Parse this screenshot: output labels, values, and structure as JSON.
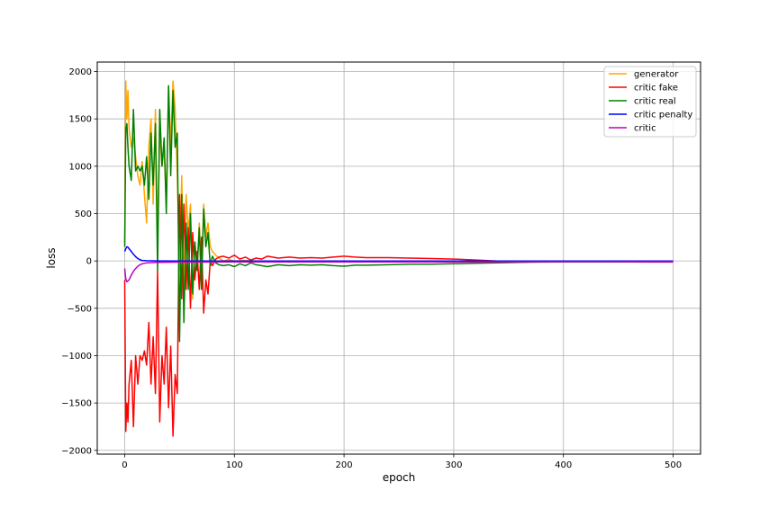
{
  "chart_data": {
    "type": "line",
    "title": "",
    "xlabel": "epoch",
    "ylabel": "loss",
    "xlim": [
      -25,
      525
    ],
    "ylim": [
      -2040,
      2100
    ],
    "xticks": [
      0,
      100,
      200,
      300,
      400,
      500
    ],
    "yticks": [
      -2000,
      -1500,
      -1000,
      -500,
      0,
      500,
      1000,
      1500,
      2000
    ],
    "ytick_labels": [
      "−2000",
      "−1500",
      "−1000",
      "−500",
      "0",
      "500",
      "1000",
      "1500",
      "2000"
    ],
    "grid": true,
    "legend_position": "top-right",
    "series": [
      {
        "name": "generator",
        "color": "#ffa500",
        "x": [
          0,
          1,
          2,
          3,
          4,
          6,
          8,
          10,
          12,
          14,
          16,
          18,
          20,
          22,
          24,
          26,
          28,
          30,
          32,
          34,
          36,
          38,
          40,
          42,
          44,
          46,
          48,
          50,
          52,
          54,
          56,
          58,
          60,
          62,
          64,
          66,
          68,
          70,
          72,
          74,
          76,
          78,
          80,
          83,
          86,
          90,
          95,
          100,
          110,
          120,
          130,
          140,
          150,
          160,
          170,
          180,
          190,
          200,
          220,
          240,
          260,
          280,
          300,
          320,
          340,
          360,
          380,
          400,
          420,
          440,
          460,
          480,
          500
        ],
        "y": [
          200,
          1900,
          1500,
          1800,
          1400,
          1200,
          1300,
          1100,
          900,
          800,
          1050,
          700,
          400,
          1200,
          1500,
          600,
          1600,
          200,
          1400,
          1000,
          1200,
          600,
          1850,
          1200,
          1900,
          1600,
          900,
          -100,
          900,
          -300,
          700,
          300,
          600,
          -400,
          200,
          -100,
          400,
          -250,
          600,
          250,
          400,
          150,
          100,
          60,
          30,
          0,
          15,
          0,
          5,
          0,
          0,
          0,
          0,
          0,
          0,
          0,
          0,
          0,
          0,
          0,
          0,
          0,
          0,
          0,
          0,
          0,
          0,
          0,
          0,
          0,
          0,
          0,
          0
        ]
      },
      {
        "name": "critic fake",
        "color": "#ff0000",
        "x": [
          0,
          1,
          2,
          3,
          4,
          6,
          8,
          10,
          12,
          14,
          16,
          18,
          20,
          22,
          24,
          26,
          28,
          30,
          32,
          34,
          36,
          38,
          40,
          42,
          44,
          46,
          48,
          50,
          52,
          54,
          56,
          58,
          60,
          62,
          64,
          66,
          68,
          70,
          72,
          74,
          76,
          78,
          80,
          83,
          86,
          90,
          95,
          100,
          105,
          110,
          115,
          120,
          125,
          130,
          140,
          150,
          160,
          170,
          180,
          190,
          200,
          210,
          220,
          240,
          260,
          280,
          300,
          320,
          340,
          360,
          380,
          400,
          420,
          440,
          460,
          480,
          500
        ],
        "y": [
          -200,
          -1800,
          -1500,
          -1700,
          -1300,
          -1050,
          -1750,
          -1000,
          -1300,
          -1000,
          -1050,
          -950,
          -1100,
          -650,
          -1300,
          -800,
          -1400,
          -100,
          -1700,
          -1000,
          -1300,
          -700,
          -1550,
          -900,
          -1850,
          -1200,
          -1400,
          700,
          -400,
          600,
          -300,
          350,
          -500,
          300,
          -200,
          100,
          -300,
          250,
          -550,
          -200,
          -350,
          0,
          -50,
          20,
          40,
          50,
          30,
          60,
          20,
          40,
          10,
          30,
          20,
          50,
          30,
          40,
          30,
          35,
          30,
          40,
          50,
          40,
          35,
          35,
          30,
          25,
          20,
          10,
          0,
          -5,
          -10,
          -5,
          -8,
          -10,
          -10,
          -12,
          -12
        ]
      },
      {
        "name": "critic real",
        "color": "#008000",
        "x": [
          0,
          1,
          2,
          3,
          4,
          6,
          8,
          10,
          12,
          14,
          16,
          18,
          20,
          22,
          24,
          26,
          28,
          30,
          32,
          34,
          36,
          38,
          40,
          42,
          44,
          46,
          48,
          50,
          52,
          54,
          56,
          58,
          60,
          62,
          64,
          66,
          68,
          70,
          72,
          74,
          76,
          78,
          80,
          83,
          86,
          90,
          95,
          100,
          105,
          110,
          115,
          120,
          125,
          130,
          140,
          150,
          160,
          170,
          180,
          190,
          200,
          210,
          220,
          240,
          260,
          280,
          300,
          320,
          340,
          360,
          380,
          400,
          420,
          440,
          460,
          480,
          500
        ],
        "y": [
          150,
          1400,
          1450,
          1200,
          1000,
          850,
          1600,
          950,
          1000,
          950,
          1000,
          800,
          1100,
          650,
          1350,
          800,
          1450,
          -100,
          1600,
          1000,
          1300,
          500,
          1850,
          900,
          1800,
          1200,
          1350,
          -850,
          700,
          -650,
          400,
          -300,
          500,
          -350,
          200,
          -100,
          350,
          -300,
          550,
          150,
          300,
          -50,
          50,
          -20,
          -40,
          -50,
          -40,
          -60,
          -30,
          -50,
          -20,
          -40,
          -50,
          -60,
          -40,
          -50,
          -40,
          -45,
          -40,
          -50,
          -55,
          -45,
          -45,
          -40,
          -35,
          -35,
          -30,
          -25,
          -20,
          -15,
          -12,
          -10,
          -10,
          -10,
          -8,
          -8,
          -8
        ]
      },
      {
        "name": "critic penalty",
        "color": "#0000ff",
        "x": [
          0,
          1,
          2,
          3,
          4,
          6,
          8,
          10,
          12,
          14,
          16,
          20,
          30,
          50,
          100,
          200,
          300,
          400,
          500
        ],
        "y": [
          100,
          130,
          150,
          145,
          130,
          100,
          70,
          45,
          25,
          12,
          5,
          2,
          1,
          0,
          0,
          0,
          0,
          0,
          0
        ]
      },
      {
        "name": "critic",
        "color": "#bf00bf",
        "x": [
          0,
          1,
          2,
          3,
          4,
          6,
          8,
          10,
          12,
          14,
          16,
          20,
          30,
          50,
          100,
          200,
          300,
          400,
          500
        ],
        "y": [
          -80,
          -190,
          -220,
          -210,
          -200,
          -150,
          -110,
          -80,
          -55,
          -40,
          -30,
          -20,
          -15,
          -12,
          -10,
          -10,
          -10,
          -8,
          -8
        ]
      }
    ]
  }
}
